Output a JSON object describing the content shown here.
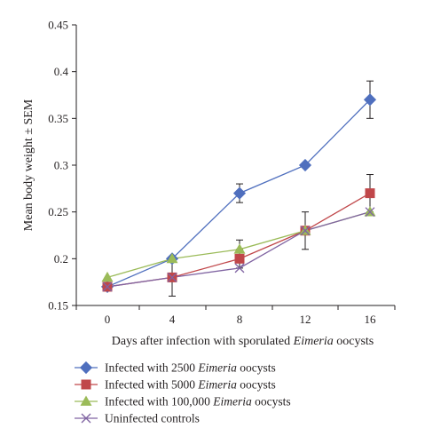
{
  "chart_data": {
    "type": "line",
    "xlabel_parts": [
      "Days after infection with sporulated ",
      "Eimeria",
      " oocysts"
    ],
    "ylabel": "Mean body weight ± SEM",
    "x": [
      0,
      4,
      8,
      12,
      16
    ],
    "x_tick_labels": [
      "0",
      "4",
      "8",
      "12",
      "16"
    ],
    "ylim": [
      0.15,
      0.45
    ],
    "y_tick_labels": [
      "0.15",
      "0.2",
      "0.25",
      "0.3",
      "0.35",
      "0.4",
      "0.45"
    ],
    "grid": false,
    "legend_position": "bottom",
    "series": [
      {
        "label_parts": [
          "Infected with 2500 ",
          "Eimeria",
          " oocysts"
        ],
        "values": [
          0.17,
          0.2,
          0.27,
          0.3,
          0.37
        ],
        "sem": [
          0,
          0,
          0.01,
          0,
          0.02
        ],
        "color": "#4f6fbe",
        "marker": "diamond"
      },
      {
        "label_parts": [
          "Infected with 5000 ",
          "Eimeria",
          " oocysts"
        ],
        "values": [
          0.17,
          0.18,
          0.2,
          0.23,
          0.27
        ],
        "sem": [
          0,
          0.02,
          0.01,
          0.02,
          0.02
        ],
        "color": "#c0474a",
        "marker": "square"
      },
      {
        "label_parts": [
          "Infected with 100,000 ",
          "Eimeria",
          " oocysts"
        ],
        "values": [
          0.18,
          0.2,
          0.21,
          0.23,
          0.25
        ],
        "sem": [
          0,
          0,
          0.01,
          0,
          0
        ],
        "color": "#9bbb59",
        "marker": "triangle"
      },
      {
        "label_parts": [
          "Uninfected controls"
        ],
        "values": [
          0.17,
          0.18,
          0.19,
          0.23,
          0.25
        ],
        "sem": [
          0,
          0,
          0,
          0,
          0
        ],
        "color": "#8064a2",
        "marker": "x"
      }
    ]
  }
}
